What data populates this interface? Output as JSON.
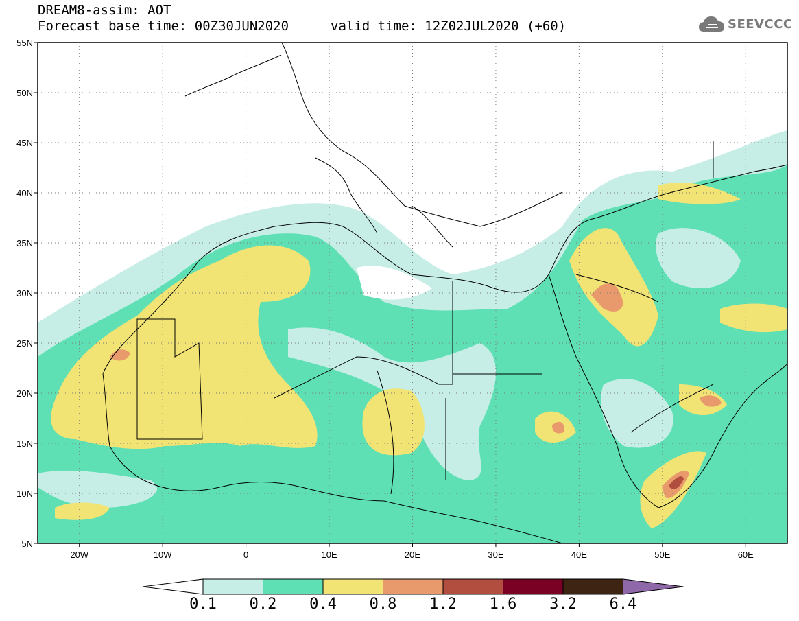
{
  "header": {
    "title": "DREAM8-assim: AOT",
    "base_time": "Forecast base time: 00Z30JUN2020",
    "valid_time": "valid time: 12Z02JUL2020 (+60)"
  },
  "logo": {
    "text": "SEEVCCC",
    "icon": "cloud-icon"
  },
  "map": {
    "lon_range": [
      -25,
      65
    ],
    "lat_range": [
      5,
      55
    ],
    "lat_ticks": [
      {
        "value": 55,
        "label": "55N"
      },
      {
        "value": 50,
        "label": "50N"
      },
      {
        "value": 45,
        "label": "45N"
      },
      {
        "value": 40,
        "label": "40N"
      },
      {
        "value": 35,
        "label": "35N"
      },
      {
        "value": 30,
        "label": "30N"
      },
      {
        "value": 25,
        "label": "25N"
      },
      {
        "value": 20,
        "label": "20N"
      },
      {
        "value": 15,
        "label": "15N"
      },
      {
        "value": 10,
        "label": "10N"
      },
      {
        "value": 5,
        "label": "5N"
      }
    ],
    "lon_ticks": [
      {
        "value": -20,
        "label": "20W"
      },
      {
        "value": -10,
        "label": "10W"
      },
      {
        "value": 0,
        "label": "0"
      },
      {
        "value": 10,
        "label": "10E"
      },
      {
        "value": 20,
        "label": "20E"
      },
      {
        "value": 30,
        "label": "30E"
      },
      {
        "value": 40,
        "label": "40E"
      },
      {
        "value": 50,
        "label": "50E"
      },
      {
        "value": 60,
        "label": "60E"
      }
    ],
    "grid": "dotted"
  },
  "colorbar": {
    "labels": [
      "0.1",
      "0.2",
      "0.4",
      "0.8",
      "1.2",
      "1.6",
      "3.2",
      "6.4"
    ],
    "colors": [
      "#ffffff",
      "#c6eee6",
      "#5ee0b4",
      "#f2e474",
      "#e89a6c",
      "#b24e40",
      "#7a0024",
      "#3e2412",
      "#8e68a8"
    ]
  }
}
